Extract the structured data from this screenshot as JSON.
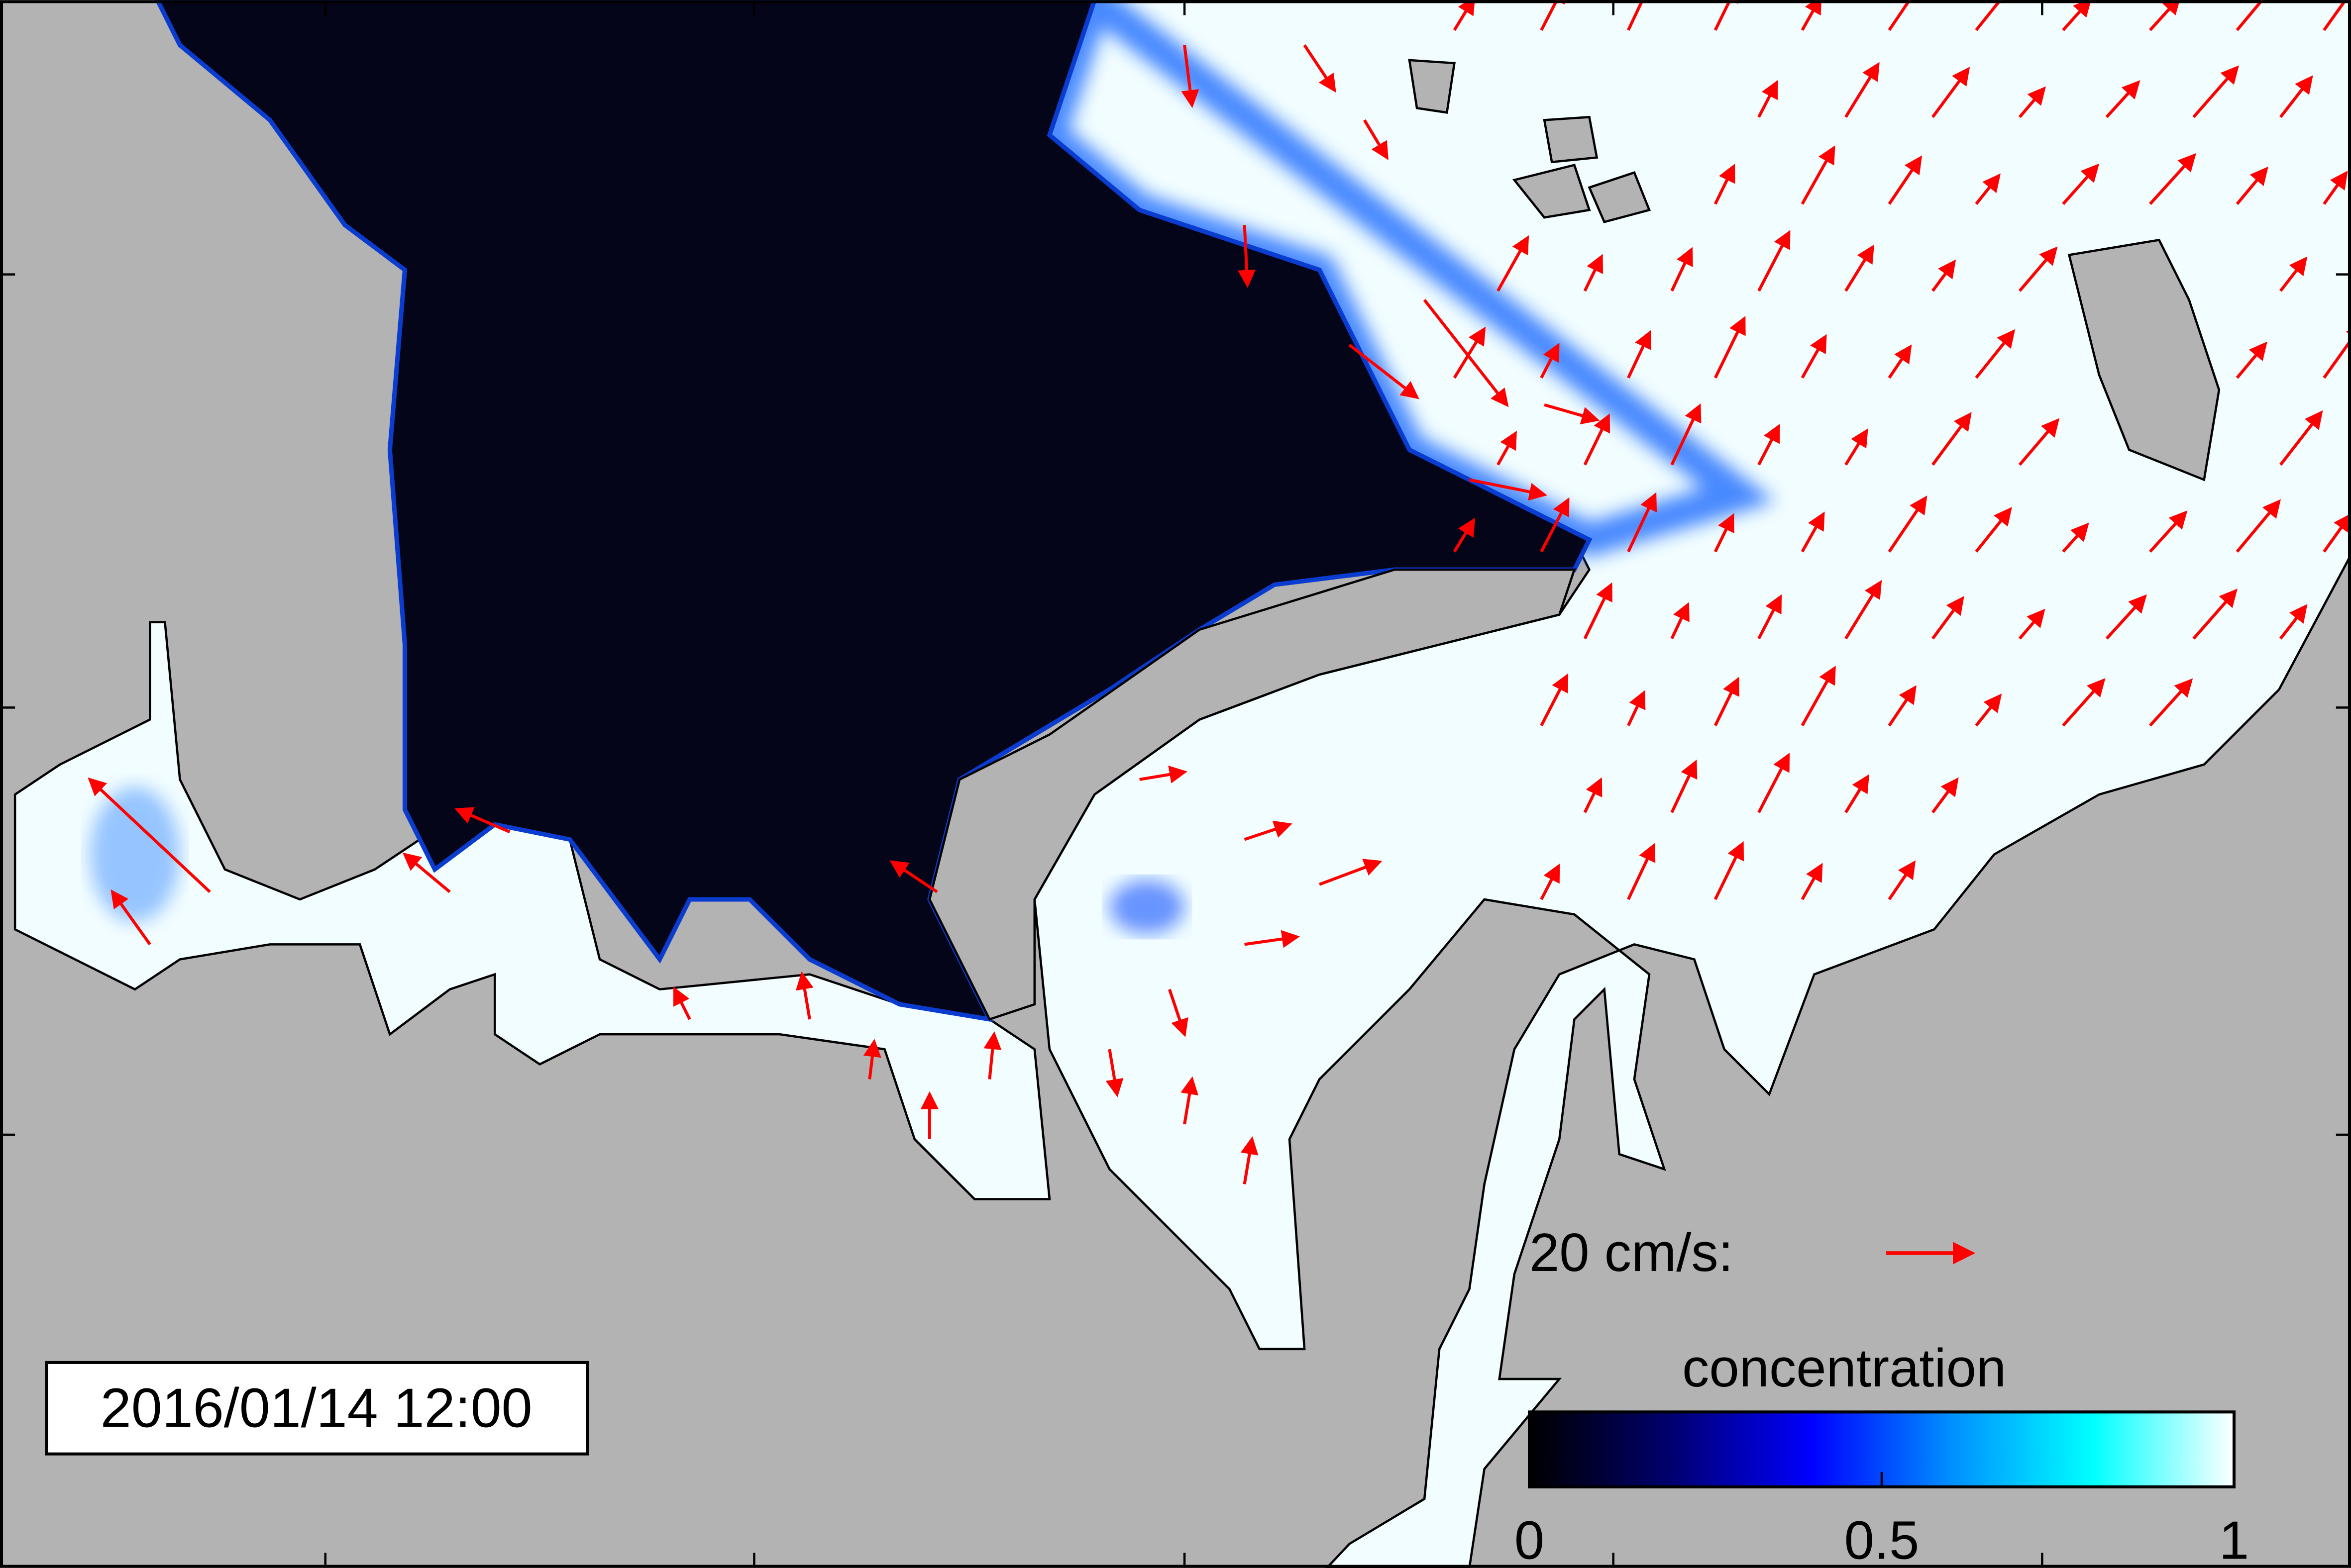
{
  "timestamp": "2016/01/14 12:00",
  "velocity_scale": {
    "label": "20 cm/s:"
  },
  "colorbar": {
    "label": "concentration",
    "ticks": [
      0,
      0.5,
      1
    ]
  }
}
